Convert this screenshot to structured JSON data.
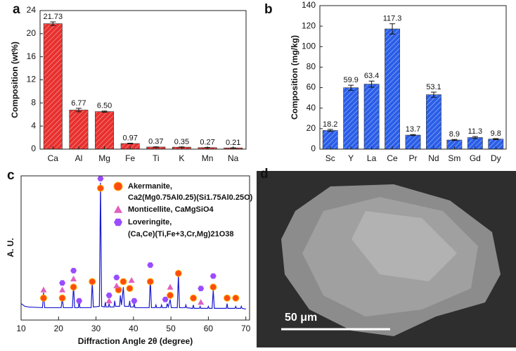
{
  "chart_data": [
    {
      "type": "bar",
      "panel": "a",
      "ylabel": "Composition (wt%)",
      "categories": [
        "Ca",
        "Al",
        "Mg",
        "Fe",
        "Ti",
        "K",
        "Mn",
        "Na"
      ],
      "values": [
        21.73,
        6.77,
        6.5,
        0.97,
        0.37,
        0.35,
        0.27,
        0.21
      ],
      "value_labels": [
        "21.73",
        "6.77",
        "6.50",
        "0.97",
        "0.37",
        "0.35",
        "0.27",
        "0.21"
      ],
      "errors": [
        0.3,
        0.3,
        0.1,
        0.05,
        0.03,
        0.03,
        0.02,
        0.02
      ],
      "color": "#e8302e",
      "ylim": [
        0,
        24
      ],
      "yticks": [
        0,
        4,
        8,
        12,
        16,
        20,
        24
      ]
    },
    {
      "type": "bar",
      "panel": "b",
      "ylabel": "Composition (mg/kg)",
      "categories": [
        "Sc",
        "Y",
        "La",
        "Ce",
        "Pr",
        "Nd",
        "Sm",
        "Gd",
        "Dy"
      ],
      "values": [
        18.2,
        59.9,
        63.4,
        117.3,
        13.7,
        53.1,
        8.9,
        11.3,
        9.8
      ],
      "errors": [
        1,
        2.5,
        3,
        5,
        0.5,
        2.5,
        0.5,
        1,
        0.5
      ],
      "color": "#2a5ee8",
      "ylim": [
        0,
        140
      ],
      "yticks": [
        0,
        20,
        40,
        60,
        80,
        100,
        120,
        140
      ]
    },
    {
      "type": "line",
      "panel": "c",
      "xlabel": "Diffraction Angle 2θ (degree)",
      "ylabel": "A. U.",
      "x": [
        10,
        11,
        12,
        15.7,
        16,
        16.3,
        20.7,
        21,
        21.3,
        23.7,
        24,
        24.3,
        25.3,
        25.5,
        25.7,
        28.7,
        29,
        29.3,
        30.9,
        31.2,
        31.5,
        32.3,
        32.5,
        32.7,
        33.3,
        33.5,
        33.7,
        34.8,
        35,
        35.2,
        36.3,
        36.5,
        36.8,
        37.3,
        37.6,
        38.8,
        39,
        39.2,
        40,
        40.2,
        40.4,
        44.2,
        44.5,
        44.8,
        45.8,
        46,
        46.2,
        47.3,
        47.5,
        47.7,
        48.8,
        49,
        49.3,
        49.8,
        50.1,
        51.7,
        52,
        52.3,
        53.8,
        54,
        54.2,
        55.8,
        56,
        56.2,
        57.6,
        57.8,
        58,
        59.8,
        60,
        60.2,
        61,
        61.3,
        61.6,
        64.8,
        65,
        65.2,
        67.1,
        67.3,
        67.5,
        68.6,
        68.8,
        69,
        70
      ],
      "values": [
        12,
        10,
        9.5,
        9,
        20,
        9,
        9,
        16,
        9,
        9,
        25,
        9,
        9,
        14,
        9,
        9,
        28,
        9.5,
        10,
        100,
        10,
        9.5,
        13,
        9.5,
        9.5,
        12,
        9.5,
        9.5,
        14,
        10,
        10,
        18,
        11,
        24,
        10,
        10,
        14,
        9.5,
        9.5,
        12,
        9,
        9,
        30,
        9,
        9,
        11,
        9,
        9,
        11,
        9,
        9,
        12,
        9.5,
        15,
        9,
        9,
        33,
        9,
        9,
        11,
        9,
        8.5,
        11,
        8.5,
        8.5,
        10,
        8.5,
        8.5,
        10,
        8.5,
        8.5,
        22,
        8.5,
        8.5,
        12,
        8.5,
        8.5,
        10,
        8.5,
        8.5,
        10,
        8.5,
        8
      ],
      "color": "#1a1ad0",
      "xlim": [
        10,
        71
      ],
      "xticks": [
        10,
        20,
        30,
        40,
        50,
        60,
        70
      ],
      "ylim": [
        0,
        105
      ],
      "phases": [
        {
          "name": "Akermanite,",
          "formula": "Ca2(Mg0.75Al0.25)(Si1.75Al0.25O)",
          "marker": "circle",
          "color": "#ff4a10",
          "x": [
            16,
            21,
            24,
            29,
            31.2,
            36,
            37.3,
            39,
            44.5,
            49.8,
            52,
            56,
            61.3,
            65,
            67.3
          ],
          "y": [
            16,
            16,
            24,
            28,
            96,
            22,
            28,
            23,
            28,
            18,
            34,
            16,
            24,
            16,
            16
          ]
        },
        {
          "name": "Monticellite, CaMgSiO4",
          "marker": "triangle",
          "color": "#e060c0",
          "x": [
            16,
            21,
            24,
            33.5,
            35.5,
            39.5,
            49.8,
            58
          ],
          "y": [
            22,
            22,
            30,
            14,
            25,
            29,
            24,
            13
          ]
        },
        {
          "name": "Loveringite,",
          "formula": "(Ca,Ce)(Ti,Fe+3,Cr,Mg)21O38",
          "marker": "hexagon",
          "color": "#9a4cff",
          "x": [
            21,
            24,
            25.5,
            31.2,
            33.5,
            35.5,
            40.2,
            44.5,
            48.5,
            58,
            61.3
          ],
          "y": [
            27,
            36,
            14,
            103,
            18,
            31,
            14,
            40,
            15,
            23,
            32
          ]
        }
      ]
    }
  ],
  "image": {
    "panel": "d",
    "scale_bar": "50 μm"
  }
}
